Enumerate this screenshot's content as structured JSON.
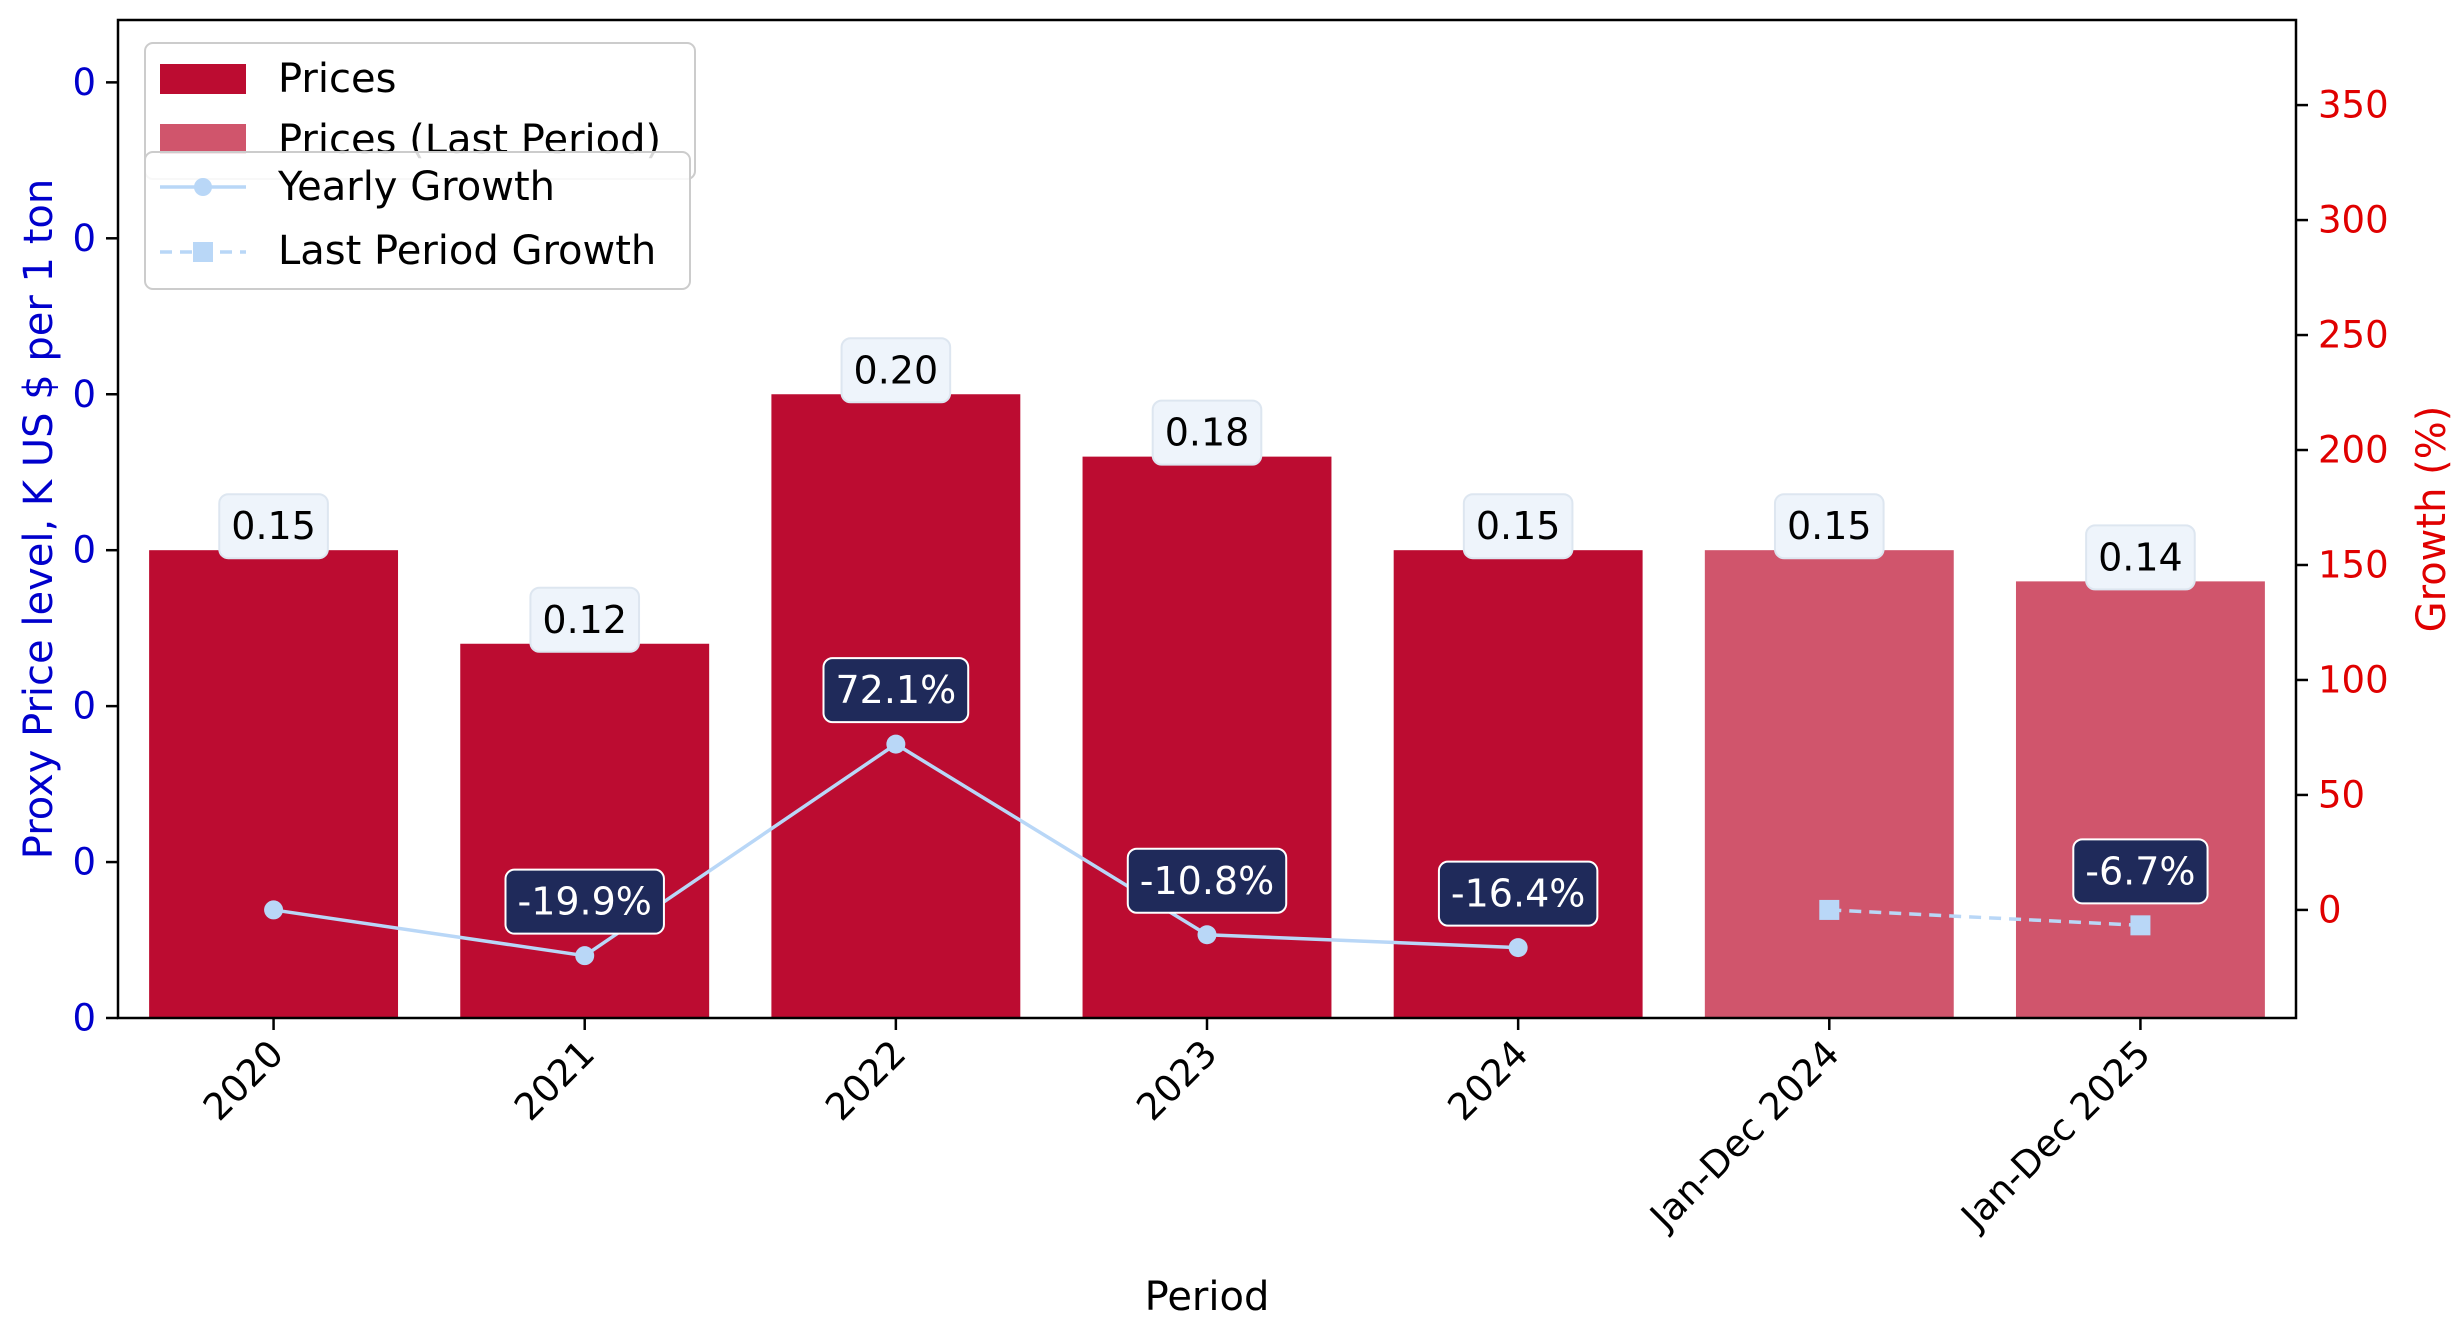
{
  "chart_data": {
    "type": "bar",
    "categories": [
      "2020",
      "2021",
      "2022",
      "2023",
      "2024",
      "Jan-Dec 2024",
      "Jan-Dec 2025"
    ],
    "xlabel": "Period",
    "ylabel": "Proxy Price level, K US $ per 1 ton",
    "y2label": "Growth (%)",
    "ylim": [
      0,
      0.32
    ],
    "y2lim": [
      -47,
      387
    ],
    "yticks": [
      0,
      0.05,
      0.1,
      0.15,
      0.2,
      0.25,
      0.3
    ],
    "ytick_labels": [
      "0",
      "0",
      "0",
      "0",
      "0",
      "0",
      "0"
    ],
    "y2ticks": [
      0,
      50,
      100,
      150,
      200,
      250,
      300,
      350
    ],
    "y2tick_labels": [
      "0",
      "50",
      "100",
      "150",
      "200",
      "250",
      "300",
      "350"
    ],
    "series": [
      {
        "name": "Prices",
        "kind": "bar",
        "color": "#bc0c31",
        "values": [
          0.15,
          0.12,
          0.2,
          0.18,
          0.15,
          null,
          null
        ],
        "labels": [
          "0.15",
          "0.12",
          "0.20",
          "0.18",
          "0.15",
          "",
          ""
        ]
      },
      {
        "name": "Prices (Last Period)",
        "kind": "bar",
        "color": "#d0556c",
        "values": [
          null,
          null,
          null,
          null,
          null,
          0.15,
          0.14
        ],
        "labels": [
          "",
          "",
          "",
          "",
          "",
          "0.15",
          "0.14"
        ]
      },
      {
        "name": "Yearly Growth",
        "kind": "line",
        "style": "solid",
        "marker": "circle",
        "color": "#b9d7f7",
        "values": [
          0,
          -19.9,
          72.1,
          -10.8,
          -16.4,
          null,
          null
        ],
        "labels": [
          "",
          "-19.9%",
          "72.1%",
          "-10.8%",
          "-16.4%",
          "",
          ""
        ]
      },
      {
        "name": "Last Period Growth",
        "kind": "line",
        "style": "dashed",
        "marker": "square",
        "color": "#b9d7f7",
        "values": [
          null,
          null,
          null,
          null,
          null,
          0,
          -6.7
        ],
        "labels": [
          "",
          "",
          "",
          "",
          "",
          "",
          "-6.7%"
        ]
      }
    ],
    "legend_position": "top-left",
    "colors": {
      "left_axis": "#0000cc",
      "right_axis": "#e00000",
      "growth_label_bg": "#1f2a5a",
      "bar_label_bg": "#eef4fb"
    }
  }
}
